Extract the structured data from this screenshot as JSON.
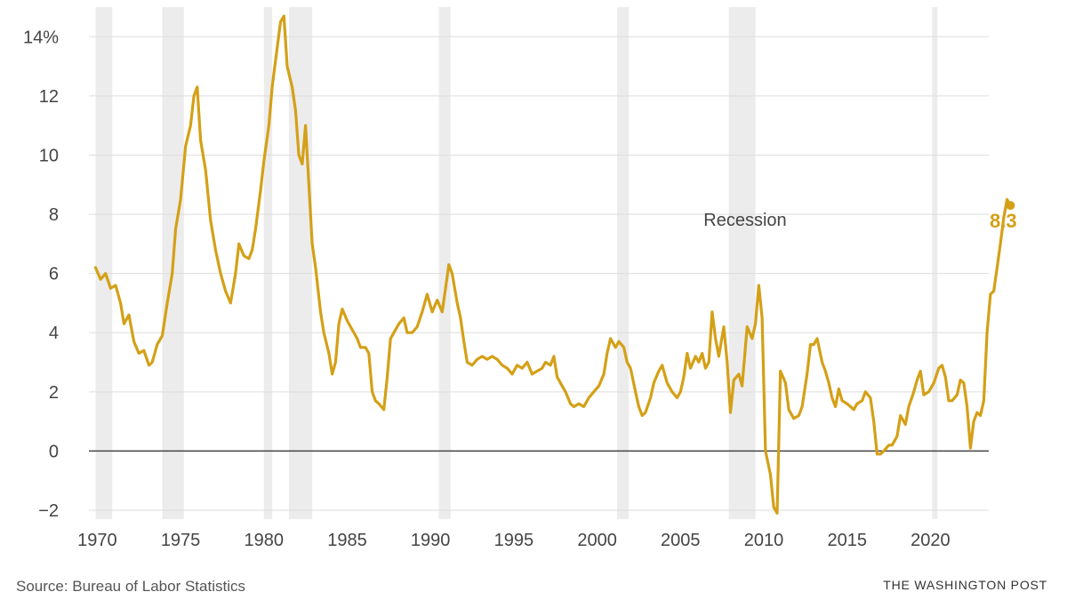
{
  "chart_data": {
    "type": "line",
    "title": "",
    "xlabel": "",
    "ylabel": "",
    "xlim": [
      1969.5,
      2023.5
    ],
    "ylim": [
      -2.3,
      15
    ],
    "y_ticks": [
      -2,
      0,
      2,
      4,
      6,
      8,
      10,
      12,
      14
    ],
    "y_tick_labels": [
      "−2",
      "0",
      "2",
      "4",
      "6",
      "8",
      "10",
      "12",
      "14%"
    ],
    "x_ticks": [
      1970,
      1975,
      1980,
      1985,
      1990,
      1995,
      2000,
      2005,
      2010,
      2015,
      2020
    ],
    "x_tick_labels": [
      "1970",
      "1975",
      "1980",
      "1985",
      "1990",
      "1995",
      "2000",
      "2005",
      "2010",
      "2015",
      "2020"
    ],
    "grid": "horizontal",
    "zero_line": true,
    "recession_label": "Recession",
    "recessions": [
      [
        1969.9,
        1970.9
      ],
      [
        1973.9,
        1975.2
      ],
      [
        1980.0,
        1980.5
      ],
      [
        1981.5,
        1982.9
      ],
      [
        1990.5,
        1991.2
      ],
      [
        2001.2,
        2001.9
      ],
      [
        2007.9,
        2009.5
      ],
      [
        2020.1,
        2020.4
      ]
    ],
    "series": [
      {
        "name": "",
        "color": "#d4a017",
        "end_label": "8.3",
        "points": [
          [
            1969.9,
            6.2
          ],
          [
            1970.2,
            5.8
          ],
          [
            1970.5,
            6.0
          ],
          [
            1970.8,
            5.5
          ],
          [
            1971.1,
            5.6
          ],
          [
            1971.4,
            5.0
          ],
          [
            1971.6,
            4.3
          ],
          [
            1971.9,
            4.6
          ],
          [
            1972.2,
            3.7
          ],
          [
            1972.5,
            3.3
          ],
          [
            1972.8,
            3.4
          ],
          [
            1973.1,
            2.9
          ],
          [
            1973.3,
            3.0
          ],
          [
            1973.6,
            3.6
          ],
          [
            1973.9,
            3.9
          ],
          [
            1974.2,
            5.0
          ],
          [
            1974.5,
            6.0
          ],
          [
            1974.7,
            7.5
          ],
          [
            1975.0,
            8.5
          ],
          [
            1975.3,
            10.3
          ],
          [
            1975.6,
            11.0
          ],
          [
            1975.8,
            12.0
          ],
          [
            1976.0,
            12.3
          ],
          [
            1976.2,
            10.5
          ],
          [
            1976.5,
            9.5
          ],
          [
            1976.8,
            7.8
          ],
          [
            1977.1,
            6.8
          ],
          [
            1977.4,
            6.0
          ],
          [
            1977.7,
            5.4
          ],
          [
            1978.0,
            5.0
          ],
          [
            1978.3,
            6.0
          ],
          [
            1978.5,
            7.0
          ],
          [
            1978.8,
            6.6
          ],
          [
            1979.1,
            6.5
          ],
          [
            1979.3,
            6.8
          ],
          [
            1979.5,
            7.5
          ],
          [
            1979.8,
            8.8
          ],
          [
            1980.0,
            9.8
          ],
          [
            1980.3,
            11.0
          ],
          [
            1980.5,
            12.3
          ],
          [
            1980.7,
            13.2
          ],
          [
            1981.0,
            14.5
          ],
          [
            1981.2,
            14.7
          ],
          [
            1981.4,
            13.0
          ],
          [
            1981.7,
            12.3
          ],
          [
            1981.9,
            11.5
          ],
          [
            1982.1,
            10.0
          ],
          [
            1982.3,
            9.7
          ],
          [
            1982.5,
            11.0
          ],
          [
            1982.7,
            9.0
          ],
          [
            1982.9,
            7.0
          ],
          [
            1983.1,
            6.2
          ],
          [
            1983.4,
            4.7
          ],
          [
            1983.6,
            4.0
          ],
          [
            1983.9,
            3.3
          ],
          [
            1984.1,
            2.6
          ],
          [
            1984.3,
            3.0
          ],
          [
            1984.5,
            4.3
          ],
          [
            1984.7,
            4.8
          ],
          [
            1985.0,
            4.4
          ],
          [
            1985.3,
            4.1
          ],
          [
            1985.6,
            3.8
          ],
          [
            1985.8,
            3.5
          ],
          [
            1986.1,
            3.5
          ],
          [
            1986.3,
            3.3
          ],
          [
            1986.5,
            2.0
          ],
          [
            1986.7,
            1.7
          ],
          [
            1986.9,
            1.6
          ],
          [
            1987.2,
            1.4
          ],
          [
            1987.4,
            2.5
          ],
          [
            1987.6,
            3.8
          ],
          [
            1987.8,
            4.0
          ],
          [
            1988.1,
            4.3
          ],
          [
            1988.4,
            4.5
          ],
          [
            1988.6,
            4.0
          ],
          [
            1988.9,
            4.0
          ],
          [
            1989.2,
            4.2
          ],
          [
            1989.5,
            4.7
          ],
          [
            1989.8,
            5.3
          ],
          [
            1990.1,
            4.7
          ],
          [
            1990.4,
            5.1
          ],
          [
            1990.7,
            4.7
          ],
          [
            1990.9,
            5.5
          ],
          [
            1991.1,
            6.3
          ],
          [
            1991.3,
            6.0
          ],
          [
            1991.6,
            5.0
          ],
          [
            1991.8,
            4.5
          ],
          [
            1992.0,
            3.7
          ],
          [
            1992.2,
            3.0
          ],
          [
            1992.5,
            2.9
          ],
          [
            1992.8,
            3.1
          ],
          [
            1993.1,
            3.2
          ],
          [
            1993.4,
            3.1
          ],
          [
            1993.7,
            3.2
          ],
          [
            1994.0,
            3.1
          ],
          [
            1994.3,
            2.9
          ],
          [
            1994.6,
            2.8
          ],
          [
            1994.9,
            2.6
          ],
          [
            1995.2,
            2.9
          ],
          [
            1995.5,
            2.8
          ],
          [
            1995.8,
            3.0
          ],
          [
            1996.1,
            2.6
          ],
          [
            1996.4,
            2.7
          ],
          [
            1996.7,
            2.8
          ],
          [
            1996.9,
            3.0
          ],
          [
            1997.2,
            2.9
          ],
          [
            1997.4,
            3.2
          ],
          [
            1997.6,
            2.5
          ],
          [
            1997.9,
            2.2
          ],
          [
            1998.1,
            2.0
          ],
          [
            1998.4,
            1.6
          ],
          [
            1998.6,
            1.5
          ],
          [
            1998.9,
            1.6
          ],
          [
            1999.2,
            1.5
          ],
          [
            1999.5,
            1.8
          ],
          [
            1999.8,
            2.0
          ],
          [
            2000.1,
            2.2
          ],
          [
            2000.4,
            2.6
          ],
          [
            2000.6,
            3.3
          ],
          [
            2000.8,
            3.8
          ],
          [
            2001.1,
            3.5
          ],
          [
            2001.3,
            3.7
          ],
          [
            2001.6,
            3.5
          ],
          [
            2001.8,
            3.0
          ],
          [
            2002.0,
            2.8
          ],
          [
            2002.3,
            2.0
          ],
          [
            2002.5,
            1.5
          ],
          [
            2002.7,
            1.2
          ],
          [
            2002.9,
            1.3
          ],
          [
            2003.2,
            1.8
          ],
          [
            2003.4,
            2.3
          ],
          [
            2003.7,
            2.7
          ],
          [
            2003.9,
            2.9
          ],
          [
            2004.2,
            2.3
          ],
          [
            2004.5,
            2.0
          ],
          [
            2004.8,
            1.8
          ],
          [
            2005.0,
            2.0
          ],
          [
            2005.2,
            2.5
          ],
          [
            2005.4,
            3.3
          ],
          [
            2005.6,
            2.8
          ],
          [
            2005.9,
            3.2
          ],
          [
            2006.1,
            3.0
          ],
          [
            2006.3,
            3.3
          ],
          [
            2006.5,
            2.8
          ],
          [
            2006.7,
            3.0
          ],
          [
            2006.9,
            4.7
          ],
          [
            2007.1,
            3.8
          ],
          [
            2007.3,
            3.2
          ],
          [
            2007.6,
            4.2
          ],
          [
            2007.8,
            3.0
          ],
          [
            2008.0,
            1.3
          ],
          [
            2008.2,
            2.4
          ],
          [
            2008.5,
            2.6
          ],
          [
            2008.7,
            2.2
          ],
          [
            2009.0,
            4.2
          ],
          [
            2009.3,
            3.8
          ],
          [
            2009.5,
            4.3
          ],
          [
            2009.7,
            5.6
          ],
          [
            2009.9,
            4.5
          ],
          [
            2010.1,
            0.0
          ],
          [
            2010.4,
            -0.8
          ],
          [
            2010.6,
            -1.9
          ],
          [
            2010.8,
            -2.1
          ],
          [
            2011.0,
            2.7
          ],
          [
            2011.3,
            2.3
          ],
          [
            2011.5,
            1.4
          ],
          [
            2011.8,
            1.1
          ],
          [
            2012.1,
            1.2
          ],
          [
            2012.3,
            1.5
          ],
          [
            2012.6,
            2.6
          ],
          [
            2012.8,
            3.6
          ],
          [
            2013.0,
            3.6
          ],
          [
            2013.2,
            3.8
          ],
          [
            2013.5,
            3.0
          ],
          [
            2013.7,
            2.7
          ],
          [
            2013.9,
            2.3
          ],
          [
            2014.1,
            1.8
          ],
          [
            2014.3,
            1.5
          ],
          [
            2014.5,
            2.1
          ],
          [
            2014.7,
            1.7
          ],
          [
            2015.0,
            1.6
          ],
          [
            2015.2,
            1.5
          ],
          [
            2015.4,
            1.4
          ],
          [
            2015.6,
            1.6
          ],
          [
            2015.9,
            1.7
          ],
          [
            2016.1,
            2.0
          ],
          [
            2016.4,
            1.8
          ],
          [
            2016.6,
            1.0
          ],
          [
            2016.8,
            -0.1
          ],
          [
            2017.0,
            -0.1
          ],
          [
            2017.2,
            0.0
          ],
          [
            2017.5,
            0.2
          ],
          [
            2017.7,
            0.2
          ],
          [
            2018.0,
            0.5
          ],
          [
            2018.2,
            1.2
          ],
          [
            2018.5,
            0.9
          ],
          [
            2018.7,
            1.5
          ],
          [
            2019.0,
            2.0
          ],
          [
            2019.2,
            2.4
          ],
          [
            2019.4,
            2.7
          ],
          [
            2019.6,
            1.9
          ],
          [
            2019.9,
            2.0
          ],
          [
            2020.2,
            2.3
          ],
          [
            2020.5,
            2.8
          ],
          [
            2020.7,
            2.9
          ],
          [
            2020.9,
            2.5
          ],
          [
            2021.1,
            1.7
          ],
          [
            2021.3,
            1.7
          ],
          [
            2021.6,
            1.9
          ],
          [
            2021.8,
            2.4
          ],
          [
            2022.0,
            2.3
          ],
          [
            2022.2,
            1.5
          ],
          [
            2022.4,
            0.1
          ],
          [
            2022.6,
            1.0
          ],
          [
            2022.8,
            1.3
          ],
          [
            2023.0,
            1.2
          ],
          [
            2023.2,
            1.7
          ],
          [
            2023.4,
            4.0
          ],
          [
            2023.6,
            5.3
          ],
          [
            2023.8,
            5.4
          ],
          [
            2024.0,
            6.2
          ],
          [
            2024.2,
            7.0
          ],
          [
            2024.4,
            7.9
          ],
          [
            2024.6,
            8.5
          ],
          [
            2024.8,
            8.3
          ]
        ]
      }
    ]
  },
  "footer": {
    "source": "Source: Bureau of Labor Statistics",
    "credit": "THE WASHINGTON POST"
  }
}
